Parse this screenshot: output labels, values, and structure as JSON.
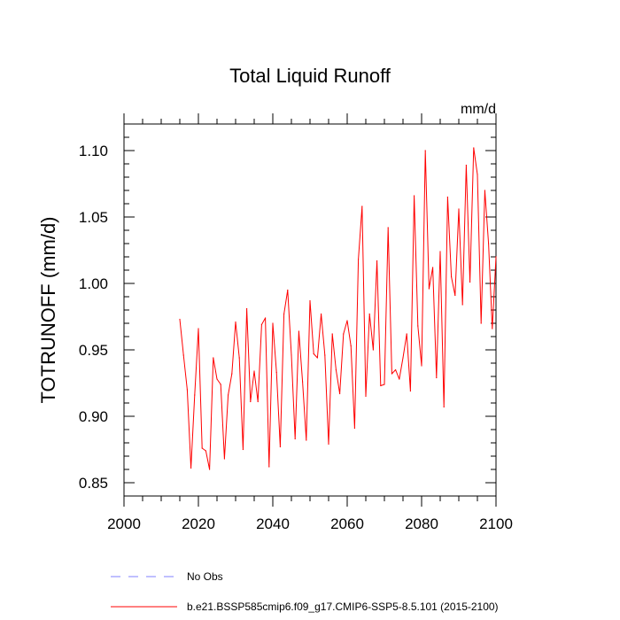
{
  "chart_data": {
    "type": "line",
    "title": "Total Liquid Runoff",
    "units": "mm/d",
    "xlabel": "",
    "ylabel": "TOTRUNOFF  (mm/d)",
    "xlim": [
      2000,
      2100
    ],
    "ylim": [
      0.84,
      1.12
    ],
    "xticks": [
      2000,
      2020,
      2040,
      2060,
      2080,
      2100
    ],
    "yticks": [
      0.85,
      0.9,
      0.95,
      1.0,
      1.05,
      1.1
    ],
    "ytick_labels": [
      "0.85",
      "0.90",
      "0.95",
      "1.00",
      "1.05",
      "1.10"
    ],
    "grid": false,
    "legend_position": "bottom",
    "legend": [
      {
        "label": "No Obs",
        "color": "#8080ff",
        "style": "dashed"
      },
      {
        "label": "b.e21.BSSP585cmip6.f09_g17.CMIP6-SSP5-8.5.101 (2015-2100)",
        "color": "#ff0000",
        "style": "solid"
      }
    ],
    "series": [
      {
        "name": "b.e21.BSSP585cmip6.f09_g17.CMIP6-SSP5-8.5.101 (2015-2100)",
        "color": "#ff0000",
        "x": [
          2015,
          2016,
          2017,
          2018,
          2019,
          2020,
          2021,
          2022,
          2023,
          2024,
          2025,
          2026,
          2027,
          2028,
          2029,
          2030,
          2031,
          2032,
          2033,
          2034,
          2035,
          2036,
          2037,
          2038,
          2039,
          2040,
          2041,
          2042,
          2043,
          2044,
          2045,
          2046,
          2047,
          2048,
          2049,
          2050,
          2051,
          2052,
          2053,
          2054,
          2055,
          2056,
          2057,
          2058,
          2059,
          2060,
          2061,
          2062,
          2063,
          2064,
          2065,
          2066,
          2067,
          2068,
          2069,
          2070,
          2071,
          2072,
          2073,
          2074,
          2075,
          2076,
          2077,
          2078,
          2079,
          2080,
          2081,
          2082,
          2083,
          2084,
          2085,
          2086,
          2087,
          2088,
          2089,
          2090,
          2091,
          2092,
          2093,
          2094,
          2095,
          2096,
          2097,
          2098,
          2099,
          2100
        ],
        "values": [
          0.973,
          0.946,
          0.92,
          0.861,
          0.916,
          0.966,
          0.876,
          0.874,
          0.86,
          0.944,
          0.928,
          0.924,
          0.868,
          0.916,
          0.932,
          0.971,
          0.944,
          0.875,
          0.981,
          0.911,
          0.934,
          0.911,
          0.969,
          0.974,
          0.862,
          0.97,
          0.933,
          0.877,
          0.977,
          0.995,
          0.946,
          0.883,
          0.964,
          0.926,
          0.882,
          0.987,
          0.947,
          0.944,
          0.977,
          0.946,
          0.879,
          0.962,
          0.935,
          0.917,
          0.962,
          0.972,
          0.953,
          0.891,
          1.018,
          1.058,
          0.915,
          0.977,
          0.95,
          1.017,
          0.923,
          0.924,
          1.042,
          0.932,
          0.935,
          0.928,
          0.944,
          0.962,
          0.919,
          1.066,
          0.968,
          0.938,
          1.1,
          0.996,
          1.012,
          0.929,
          1.024,
          0.907,
          1.065,
          1.005,
          0.991,
          1.056,
          0.984,
          1.089,
          1.001,
          1.102,
          1.082,
          0.97,
          1.07,
          1.03,
          0.966,
          1.02
        ]
      }
    ]
  }
}
